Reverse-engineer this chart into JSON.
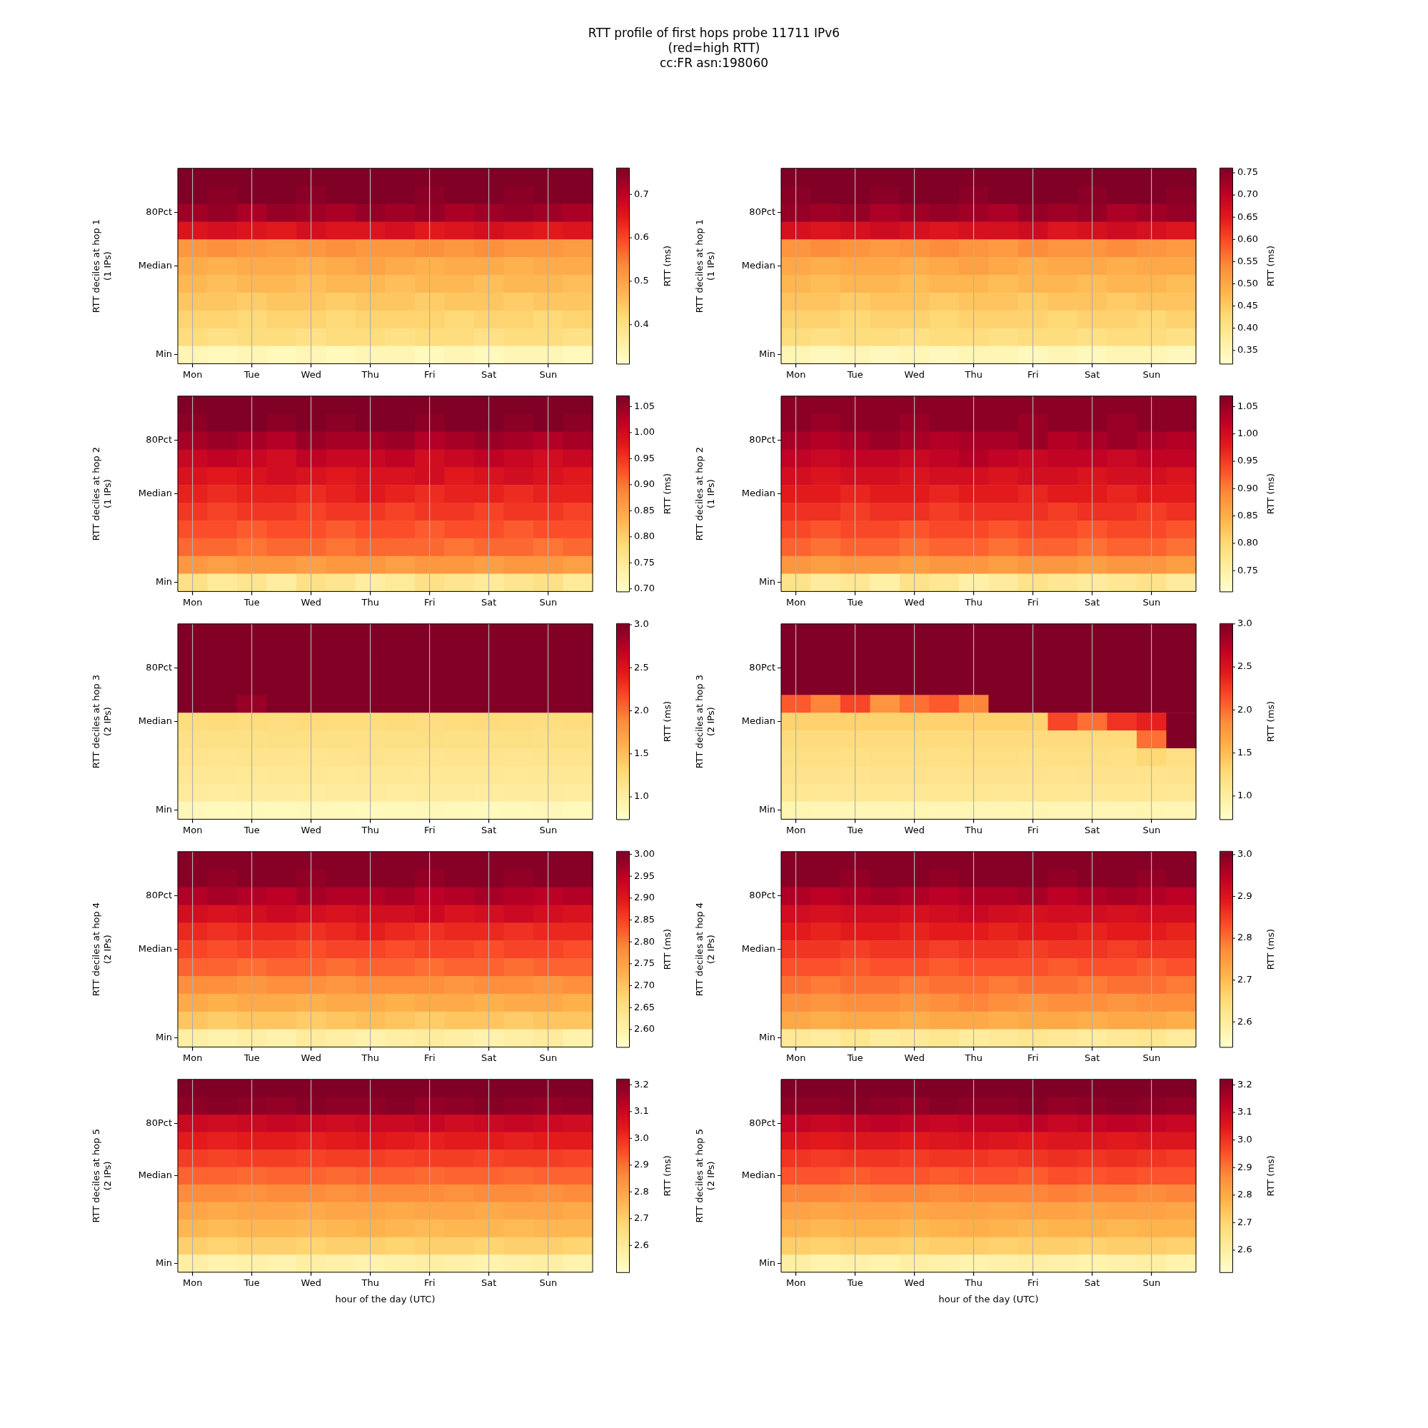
{
  "chart_data": [
    {
      "type": "heatmap",
      "title": "RTT profile of first hops probe 11711 IPv6\n(red=high RTT)\ncc:FR asn:198060",
      "ylabel": "RTT deciles at hop 1\n(1 IPs)",
      "clabel": "RTT (ms)",
      "grid": "x",
      "categories": [
        "Mon",
        null,
        "Tue",
        null,
        "Wed",
        null,
        "Thu",
        null,
        "Fri",
        null,
        "Sat",
        null,
        "Sun",
        null
      ],
      "y_categories": [
        null,
        null,
        "80Pct",
        null,
        null,
        "Median",
        null,
        null,
        null,
        null,
        "Min"
      ],
      "clim": [
        0.31,
        0.76
      ],
      "cticks": [
        0.4,
        0.5,
        0.6,
        0.7
      ],
      "cells": [
        [
          0.76,
          0.76,
          0.76,
          0.76,
          0.76,
          0.76,
          0.76,
          0.76,
          0.76,
          0.76,
          0.76,
          0.76,
          0.76,
          0.76
        ],
        [
          0.76,
          0.75,
          0.76,
          0.76,
          0.75,
          0.76,
          0.76,
          0.76,
          0.75,
          0.76,
          0.76,
          0.75,
          0.76,
          0.76
        ],
        [
          0.73,
          0.74,
          0.72,
          0.74,
          0.73,
          0.72,
          0.74,
          0.73,
          0.74,
          0.72,
          0.73,
          0.74,
          0.73,
          0.72
        ],
        [
          0.66,
          0.67,
          0.66,
          0.65,
          0.67,
          0.66,
          0.66,
          0.67,
          0.65,
          0.66,
          0.67,
          0.66,
          0.65,
          0.66
        ],
        [
          0.52,
          0.53,
          0.52,
          0.51,
          0.52,
          0.53,
          0.52,
          0.52,
          0.53,
          0.52,
          0.53,
          0.52,
          0.52,
          0.51
        ],
        [
          0.49,
          0.48,
          0.49,
          0.49,
          0.48,
          0.49,
          0.5,
          0.49,
          0.48,
          0.49,
          0.49,
          0.48,
          0.49,
          0.49
        ],
        [
          0.47,
          0.46,
          0.47,
          0.47,
          0.46,
          0.47,
          0.47,
          0.46,
          0.47,
          0.47,
          0.46,
          0.47,
          0.47,
          0.46
        ],
        [
          0.45,
          0.45,
          0.44,
          0.45,
          0.45,
          0.44,
          0.45,
          0.45,
          0.44,
          0.45,
          0.45,
          0.44,
          0.45,
          0.45
        ],
        [
          0.43,
          0.43,
          0.42,
          0.43,
          0.43,
          0.42,
          0.43,
          0.43,
          0.43,
          0.42,
          0.43,
          0.43,
          0.42,
          0.43
        ],
        [
          0.41,
          0.4,
          0.41,
          0.41,
          0.4,
          0.41,
          0.41,
          0.4,
          0.41,
          0.41,
          0.4,
          0.41,
          0.41,
          0.4
        ],
        [
          0.34,
          0.33,
          0.34,
          0.33,
          0.34,
          0.33,
          0.34,
          0.34,
          0.33,
          0.34,
          0.33,
          0.34,
          0.34,
          0.33
        ]
      ]
    },
    {
      "type": "heatmap",
      "ylabel": "RTT deciles at hop 1\n(1 IPs)",
      "clabel": "RTT (ms)",
      "grid": "x",
      "categories": [
        "Mon",
        null,
        "Tue",
        null,
        "Wed",
        null,
        "Thu",
        null,
        "Fri",
        null,
        "Sat",
        null,
        "Sun",
        null
      ],
      "y_categories": [
        null,
        null,
        "80Pct",
        null,
        null,
        "Median",
        null,
        null,
        null,
        null,
        "Min"
      ],
      "clim": [
        0.32,
        0.76
      ],
      "cticks": [
        0.35,
        {
          "value": 0.4,
          "label": "0.40"
        },
        0.45,
        {
          "value": 0.5,
          "label": "0.50"
        },
        0.55,
        {
          "value": 0.6,
          "label": "0.60"
        },
        0.65,
        {
          "value": 0.7,
          "label": "0.70"
        },
        0.75
      ],
      "cells": [
        [
          0.76,
          0.76,
          0.76,
          0.76,
          0.76,
          0.76,
          0.76,
          0.76,
          0.76,
          0.76,
          0.76,
          0.76,
          0.76,
          0.76
        ],
        [
          0.75,
          0.76,
          0.76,
          0.75,
          0.76,
          0.76,
          0.75,
          0.76,
          0.76,
          0.76,
          0.75,
          0.76,
          0.76,
          0.75
        ],
        [
          0.74,
          0.73,
          0.74,
          0.72,
          0.73,
          0.74,
          0.73,
          0.72,
          0.74,
          0.73,
          0.74,
          0.72,
          0.73,
          0.74
        ],
        [
          0.67,
          0.66,
          0.67,
          0.68,
          0.67,
          0.66,
          0.67,
          0.67,
          0.68,
          0.66,
          0.67,
          0.68,
          0.67,
          0.66
        ],
        [
          0.53,
          0.54,
          0.53,
          0.52,
          0.53,
          0.54,
          0.53,
          0.52,
          0.54,
          0.53,
          0.53,
          0.54,
          0.53,
          0.52
        ],
        [
          0.5,
          0.49,
          0.5,
          0.5,
          0.49,
          0.5,
          0.51,
          0.5,
          0.49,
          0.5,
          0.5,
          0.49,
          0.5,
          0.5
        ],
        [
          0.48,
          0.47,
          0.48,
          0.48,
          0.47,
          0.48,
          0.48,
          0.47,
          0.48,
          0.48,
          0.47,
          0.48,
          0.48,
          0.47
        ],
        [
          0.46,
          0.46,
          0.45,
          0.46,
          0.46,
          0.45,
          0.46,
          0.46,
          0.45,
          0.46,
          0.46,
          0.45,
          0.46,
          0.46
        ],
        [
          0.44,
          0.44,
          0.43,
          0.44,
          0.44,
          0.43,
          0.44,
          0.44,
          0.44,
          0.43,
          0.44,
          0.44,
          0.43,
          0.44
        ],
        [
          0.42,
          0.41,
          0.42,
          0.42,
          0.41,
          0.42,
          0.42,
          0.41,
          0.42,
          0.42,
          0.41,
          0.42,
          0.42,
          0.41
        ],
        [
          0.35,
          0.34,
          0.35,
          0.34,
          0.35,
          0.34,
          0.35,
          0.35,
          0.34,
          0.35,
          0.34,
          0.35,
          0.35,
          0.34
        ]
      ]
    },
    {
      "type": "heatmap",
      "ylabel": "RTT deciles at hop 2\n(1 IPs)",
      "clabel": "RTT (ms)",
      "grid": "x",
      "categories": [
        "Mon",
        null,
        "Tue",
        null,
        "Wed",
        null,
        "Thu",
        null,
        "Fri",
        null,
        "Sat",
        null,
        "Sun",
        null
      ],
      "y_categories": [
        null,
        null,
        "80Pct",
        null,
        null,
        "Median",
        null,
        null,
        null,
        null,
        "Min"
      ],
      "clim": [
        0.695,
        1.07
      ],
      "cticks": [
        {
          "value": 0.7,
          "label": "0.70"
        },
        0.75,
        {
          "value": 0.8,
          "label": "0.80"
        },
        0.85,
        {
          "value": 0.9,
          "label": "0.90"
        },
        0.95,
        {
          "value": 1,
          "label": "1.00"
        },
        1.05
      ],
      "cells": [
        [
          1.07,
          1.07,
          1.07,
          1.07,
          1.07,
          1.07,
          1.07,
          1.07,
          1.07,
          1.07,
          1.07,
          1.07,
          1.07,
          1.07
        ],
        [
          1.06,
          1.07,
          1.07,
          1.06,
          1.07,
          1.06,
          1.07,
          1.07,
          1.06,
          1.07,
          1.07,
          1.06,
          1.07,
          1.06
        ],
        [
          1.04,
          1.05,
          1.04,
          1.03,
          1.05,
          1.04,
          1.04,
          1.05,
          1.03,
          1.04,
          1.05,
          1.04,
          1.03,
          1.04
        ],
        [
          1.01,
          1.02,
          1.01,
          1.0,
          1.02,
          1.01,
          1.01,
          1.02,
          1.0,
          1.01,
          1.02,
          1.01,
          1.0,
          1.01
        ],
        [
          0.99,
          0.98,
          0.99,
          1.0,
          0.99,
          0.98,
          0.99,
          0.99,
          1.0,
          0.98,
          0.99,
          1.0,
          0.99,
          0.98
        ],
        [
          0.97,
          0.96,
          0.97,
          0.97,
          0.96,
          0.97,
          0.98,
          0.97,
          0.96,
          0.97,
          0.97,
          0.96,
          0.97,
          0.97
        ],
        [
          0.95,
          0.94,
          0.95,
          0.95,
          0.94,
          0.95,
          0.95,
          0.94,
          0.95,
          0.95,
          0.94,
          0.95,
          0.95,
          0.94
        ],
        [
          0.93,
          0.93,
          0.92,
          0.93,
          0.93,
          0.92,
          0.93,
          0.93,
          0.92,
          0.93,
          0.93,
          0.92,
          0.93,
          0.93
        ],
        [
          0.91,
          0.91,
          0.9,
          0.91,
          0.91,
          0.9,
          0.91,
          0.91,
          0.91,
          0.9,
          0.91,
          0.91,
          0.9,
          0.91
        ],
        [
          0.87,
          0.86,
          0.87,
          0.87,
          0.86,
          0.87,
          0.87,
          0.86,
          0.87,
          0.87,
          0.86,
          0.87,
          0.87,
          0.86
        ],
        [
          0.77,
          0.75,
          0.76,
          0.74,
          0.77,
          0.76,
          0.74,
          0.75,
          0.77,
          0.76,
          0.75,
          0.76,
          0.77,
          0.75
        ]
      ]
    },
    {
      "type": "heatmap",
      "ylabel": "RTT deciles at hop 2\n(1 IPs)",
      "clabel": "RTT (ms)",
      "grid": "x",
      "categories": [
        "Mon",
        null,
        "Tue",
        null,
        "Wed",
        null,
        "Thu",
        null,
        "Fri",
        null,
        "Sat",
        null,
        "Sun",
        null
      ],
      "y_categories": [
        null,
        null,
        "80Pct",
        null,
        null,
        "Median",
        null,
        null,
        null,
        null,
        "Min"
      ],
      "clim": [
        0.712,
        1.069
      ],
      "cticks": [
        0.75,
        {
          "value": 0.8,
          "label": "0.80"
        },
        0.85,
        {
          "value": 0.9,
          "label": "0.90"
        },
        0.95,
        {
          "value": 1,
          "label": "1.00"
        },
        1.05
      ],
      "cells": [
        [
          1.06,
          1.06,
          1.06,
          1.06,
          1.06,
          1.06,
          1.06,
          1.06,
          1.06,
          1.06,
          1.06,
          1.06,
          1.06,
          1.06
        ],
        [
          1.06,
          1.05,
          1.06,
          1.06,
          1.05,
          1.06,
          1.06,
          1.06,
          1.05,
          1.06,
          1.06,
          1.05,
          1.06,
          1.06
        ],
        [
          1.04,
          1.03,
          1.04,
          1.05,
          1.04,
          1.03,
          1.04,
          1.04,
          1.05,
          1.03,
          1.04,
          1.05,
          1.04,
          1.03
        ],
        [
          1.02,
          1.01,
          1.02,
          1.02,
          1.01,
          1.02,
          1.03,
          1.02,
          1.01,
          1.02,
          1.02,
          1.01,
          1.02,
          1.02
        ],
        [
          1.0,
          0.99,
          1.0,
          1.0,
          0.99,
          1.0,
          1.0,
          0.99,
          1.0,
          1.0,
          0.99,
          1.0,
          1.0,
          0.99
        ],
        [
          0.98,
          0.98,
          0.97,
          0.98,
          0.98,
          0.97,
          0.98,
          0.98,
          0.97,
          0.98,
          0.98,
          0.97,
          0.98,
          0.98
        ],
        [
          0.96,
          0.96,
          0.95,
          0.96,
          0.96,
          0.95,
          0.96,
          0.96,
          0.96,
          0.95,
          0.96,
          0.96,
          0.95,
          0.96
        ],
        [
          0.94,
          0.93,
          0.94,
          0.94,
          0.93,
          0.94,
          0.94,
          0.93,
          0.94,
          0.94,
          0.93,
          0.94,
          0.94,
          0.93
        ],
        [
          0.92,
          0.91,
          0.92,
          0.92,
          0.91,
          0.92,
          0.92,
          0.91,
          0.92,
          0.92,
          0.91,
          0.92,
          0.92,
          0.91
        ],
        [
          0.88,
          0.87,
          0.88,
          0.88,
          0.87,
          0.88,
          0.88,
          0.87,
          0.88,
          0.88,
          0.87,
          0.88,
          0.88,
          0.87
        ],
        [
          0.78,
          0.76,
          0.77,
          0.75,
          0.78,
          0.77,
          0.75,
          0.76,
          0.78,
          0.77,
          0.76,
          0.77,
          0.78,
          0.76
        ]
      ]
    },
    {
      "type": "heatmap",
      "ylabel": "RTT deciles at hop 3\n(2 IPs)",
      "clabel": "RTT (ms)",
      "grid": "x",
      "categories": [
        "Mon",
        null,
        "Tue",
        null,
        "Wed",
        null,
        "Thu",
        null,
        "Fri",
        null,
        "Sat",
        null,
        "Sun",
        null
      ],
      "y_categories": [
        null,
        null,
        "80Pct",
        null,
        null,
        "Median",
        null,
        null,
        null,
        null,
        "Min"
      ],
      "clim": [
        0.74,
        3.01
      ],
      "cticks": [
        {
          "value": 1,
          "label": "1.0"
        },
        1.5,
        {
          "value": 2,
          "label": "2.0"
        },
        2.5,
        {
          "value": 3,
          "label": "3.0"
        }
      ],
      "cells": [
        [
          3.0,
          3.0,
          3.0,
          3.0,
          3.0,
          3.0,
          3.0,
          3.0,
          3.0,
          3.0,
          3.0,
          3.0,
          3.0,
          3.0
        ],
        [
          3.0,
          3.0,
          3.0,
          3.0,
          3.0,
          3.0,
          3.0,
          3.0,
          3.0,
          3.0,
          3.0,
          3.0,
          3.0,
          3.0
        ],
        [
          3.0,
          3.0,
          3.0,
          3.0,
          3.0,
          3.0,
          3.0,
          3.0,
          3.0,
          3.0,
          3.0,
          3.0,
          3.0,
          3.0
        ],
        [
          3.0,
          3.0,
          3.0,
          3.0,
          3.0,
          3.0,
          3.0,
          3.0,
          3.0,
          3.0,
          3.0,
          3.0,
          3.0,
          3.0
        ],
        [
          3.0,
          3.0,
          2.9,
          3.0,
          3.0,
          3.0,
          3.0,
          3.0,
          3.0,
          3.0,
          3.0,
          3.0,
          3.0,
          3.0
        ],
        [
          1.25,
          1.27,
          1.25,
          1.24,
          1.26,
          1.25,
          1.25,
          1.27,
          1.24,
          1.25,
          1.26,
          1.25,
          1.24,
          1.25
        ],
        [
          1.2,
          1.19,
          1.2,
          1.21,
          1.2,
          1.19,
          1.2,
          1.2,
          1.21,
          1.19,
          1.2,
          1.21,
          1.2,
          1.19
        ],
        [
          1.15,
          1.14,
          1.15,
          1.15,
          1.14,
          1.15,
          1.16,
          1.15,
          1.14,
          1.15,
          1.15,
          1.14,
          1.15,
          1.15
        ],
        [
          1.1,
          1.1,
          1.09,
          1.1,
          1.1,
          1.09,
          1.1,
          1.1,
          1.09,
          1.1,
          1.1,
          1.09,
          1.1,
          1.1
        ],
        [
          1.05,
          1.04,
          1.05,
          1.05,
          1.04,
          1.05,
          1.05,
          1.04,
          1.05,
          1.05,
          1.04,
          1.05,
          1.05,
          1.04
        ],
        [
          0.86,
          0.84,
          0.85,
          0.84,
          0.86,
          0.85,
          0.84,
          0.85,
          0.86,
          0.85,
          0.84,
          0.85,
          0.86,
          0.84
        ]
      ]
    },
    {
      "type": "heatmap",
      "ylabel": "RTT deciles at hop 3\n(2 IPs)",
      "clabel": "RTT (ms)",
      "grid": "x",
      "categories": [
        "Mon",
        null,
        "Tue",
        null,
        "Wed",
        null,
        "Thu",
        null,
        "Fri",
        null,
        "Sat",
        null,
        "Sun",
        null
      ],
      "y_categories": [
        null,
        null,
        "80Pct",
        null,
        null,
        "Median",
        null,
        null,
        null,
        null,
        "Min"
      ],
      "clim": [
        0.73,
        3.0
      ],
      "cticks": [
        {
          "value": 1,
          "label": "1.0"
        },
        1.5,
        {
          "value": 2,
          "label": "2.0"
        },
        2.5,
        {
          "value": 3,
          "label": "3.0"
        }
      ],
      "cells": [
        [
          3.0,
          3.0,
          3.0,
          3.0,
          3.0,
          3.0,
          3.0,
          3.0,
          3.0,
          3.0,
          3.0,
          3.0,
          3.0,
          3.0
        ],
        [
          3.0,
          3.0,
          3.0,
          3.0,
          3.0,
          3.0,
          3.0,
          3.0,
          3.0,
          3.0,
          3.0,
          3.0,
          3.0,
          3.0
        ],
        [
          3.0,
          3.0,
          3.0,
          3.0,
          3.0,
          3.0,
          3.0,
          3.0,
          3.0,
          3.0,
          3.0,
          3.0,
          3.0,
          3.0
        ],
        [
          3.0,
          3.0,
          3.0,
          3.0,
          3.0,
          3.0,
          3.0,
          3.0,
          3.0,
          3.0,
          3.0,
          3.0,
          3.0,
          3.0
        ],
        [
          2.1,
          1.9,
          2.2,
          1.8,
          2.0,
          2.1,
          1.9,
          3.0,
          3.0,
          3.0,
          3.0,
          3.0,
          3.0,
          3.0
        ],
        [
          1.35,
          1.35,
          1.35,
          1.35,
          1.35,
          1.35,
          1.35,
          1.35,
          1.35,
          2.2,
          2.0,
          2.3,
          2.4,
          3.0
        ],
        [
          1.25,
          1.25,
          1.25,
          1.25,
          1.25,
          1.25,
          1.25,
          1.25,
          1.25,
          1.25,
          1.25,
          1.25,
          2.0,
          3.0
        ],
        [
          1.2,
          1.2,
          1.19,
          1.2,
          1.2,
          1.19,
          1.2,
          1.2,
          1.19,
          1.2,
          1.2,
          1.19,
          1.3,
          1.2
        ],
        [
          1.15,
          1.15,
          1.14,
          1.15,
          1.15,
          1.14,
          1.15,
          1.15,
          1.15,
          1.14,
          1.15,
          1.15,
          1.14,
          1.15
        ],
        [
          1.1,
          1.09,
          1.1,
          1.1,
          1.09,
          1.1,
          1.1,
          1.09,
          1.1,
          1.1,
          1.09,
          1.1,
          1.1,
          1.09
        ],
        [
          0.89,
          0.87,
          0.88,
          0.87,
          0.89,
          0.88,
          0.87,
          0.88,
          0.89,
          0.88,
          0.87,
          0.88,
          0.89,
          0.87
        ]
      ]
    },
    {
      "type": "heatmap",
      "ylabel": "RTT deciles at hop 4\n(2 IPs)",
      "clabel": "RTT (ms)",
      "grid": "x",
      "categories": [
        "Mon",
        null,
        "Tue",
        null,
        "Wed",
        null,
        "Thu",
        null,
        "Fri",
        null,
        "Sat",
        null,
        "Sun",
        null
      ],
      "y_categories": [
        null,
        null,
        "80Pct",
        null,
        null,
        "Median",
        null,
        null,
        null,
        null,
        "Min"
      ],
      "clim": [
        2.56,
        3.006
      ],
      "cticks": [
        {
          "value": 2.6,
          "label": "2.60"
        },
        2.65,
        {
          "value": 2.7,
          "label": "2.70"
        },
        2.75,
        {
          "value": 2.8,
          "label": "2.80"
        },
        2.85,
        {
          "value": 2.9,
          "label": "2.90"
        },
        2.95,
        {
          "value": 3,
          "label": "3.00"
        }
      ],
      "cells": [
        [
          3.0,
          3.0,
          3.0,
          3.0,
          3.0,
          3.0,
          3.0,
          3.0,
          3.0,
          3.0,
          3.0,
          3.0,
          3.0,
          3.0
        ],
        [
          3.0,
          2.99,
          3.0,
          3.0,
          2.99,
          3.0,
          3.0,
          3.0,
          2.99,
          3.0,
          3.0,
          2.99,
          3.0,
          3.0
        ],
        [
          2.96,
          2.97,
          2.96,
          2.95,
          2.97,
          2.96,
          2.96,
          2.97,
          2.95,
          2.96,
          2.97,
          2.96,
          2.95,
          2.96
        ],
        [
          2.92,
          2.91,
          2.92,
          2.93,
          2.92,
          2.91,
          2.92,
          2.92,
          2.93,
          2.91,
          2.92,
          2.93,
          2.92,
          2.91
        ],
        [
          2.88,
          2.87,
          2.88,
          2.88,
          2.87,
          2.88,
          2.89,
          2.88,
          2.87,
          2.88,
          2.88,
          2.87,
          2.88,
          2.88
        ],
        [
          2.85,
          2.84,
          2.85,
          2.85,
          2.84,
          2.85,
          2.85,
          2.84,
          2.85,
          2.85,
          2.84,
          2.85,
          2.85,
          2.84
        ],
        [
          2.82,
          2.82,
          2.81,
          2.82,
          2.82,
          2.81,
          2.82,
          2.82,
          2.81,
          2.82,
          2.82,
          2.81,
          2.82,
          2.82
        ],
        [
          2.78,
          2.78,
          2.77,
          2.78,
          2.78,
          2.77,
          2.78,
          2.78,
          2.78,
          2.77,
          2.78,
          2.78,
          2.77,
          2.78
        ],
        [
          2.74,
          2.73,
          2.74,
          2.74,
          2.73,
          2.74,
          2.74,
          2.73,
          2.74,
          2.74,
          2.73,
          2.74,
          2.74,
          2.73
        ],
        [
          2.7,
          2.69,
          2.7,
          2.7,
          2.69,
          2.7,
          2.71,
          2.7,
          2.69,
          2.7,
          2.7,
          2.69,
          2.7,
          2.7
        ],
        [
          2.61,
          2.6,
          2.61,
          2.6,
          2.62,
          2.61,
          2.6,
          2.61,
          2.62,
          2.61,
          2.6,
          2.61,
          2.62,
          2.6
        ]
      ]
    },
    {
      "type": "heatmap",
      "ylabel": "RTT deciles at hop 4\n(2 IPs)",
      "clabel": "RTT (ms)",
      "grid": "x",
      "categories": [
        "Mon",
        null,
        "Tue",
        null,
        "Wed",
        null,
        "Thu",
        null,
        "Fri",
        null,
        "Sat",
        null,
        "Sun",
        null
      ],
      "y_categories": [
        null,
        null,
        "80Pct",
        null,
        null,
        "Median",
        null,
        null,
        null,
        null,
        "Min"
      ],
      "clim": [
        2.54,
        3.007
      ],
      "cticks": [
        2.6,
        2.7,
        2.8,
        2.9,
        {
          "value": 3,
          "label": "3.0"
        }
      ],
      "cells": [
        [
          3.0,
          3.0,
          3.0,
          3.0,
          3.0,
          3.0,
          3.0,
          3.0,
          3.0,
          3.0,
          3.0,
          3.0,
          3.0,
          3.0
        ],
        [
          3.0,
          3.0,
          2.99,
          3.0,
          3.0,
          2.99,
          3.0,
          3.0,
          3.0,
          2.99,
          3.0,
          3.0,
          2.99,
          3.0
        ],
        [
          2.96,
          2.95,
          2.96,
          2.97,
          2.96,
          2.95,
          2.96,
          2.96,
          2.97,
          2.95,
          2.96,
          2.97,
          2.96,
          2.95
        ],
        [
          2.92,
          2.91,
          2.92,
          2.92,
          2.91,
          2.92,
          2.93,
          2.92,
          2.91,
          2.92,
          2.92,
          2.91,
          2.92,
          2.92
        ],
        [
          2.89,
          2.88,
          2.89,
          2.89,
          2.88,
          2.89,
          2.89,
          2.88,
          2.89,
          2.89,
          2.88,
          2.89,
          2.89,
          2.88
        ],
        [
          2.86,
          2.86,
          2.85,
          2.86,
          2.86,
          2.85,
          2.86,
          2.86,
          2.85,
          2.86,
          2.86,
          2.85,
          2.86,
          2.86
        ],
        [
          2.83,
          2.83,
          2.82,
          2.83,
          2.83,
          2.82,
          2.83,
          2.83,
          2.83,
          2.82,
          2.83,
          2.83,
          2.82,
          2.83
        ],
        [
          2.8,
          2.79,
          2.8,
          2.8,
          2.79,
          2.8,
          2.8,
          2.79,
          2.8,
          2.8,
          2.79,
          2.8,
          2.8,
          2.79
        ],
        [
          2.77,
          2.76,
          2.77,
          2.77,
          2.76,
          2.77,
          2.78,
          2.77,
          2.76,
          2.77,
          2.77,
          2.76,
          2.77,
          2.77
        ],
        [
          2.73,
          2.72,
          2.73,
          2.73,
          2.72,
          2.73,
          2.73,
          2.72,
          2.73,
          2.73,
          2.72,
          2.73,
          2.73,
          2.72
        ],
        [
          2.61,
          2.6,
          2.62,
          2.6,
          2.61,
          2.62,
          2.6,
          2.61,
          2.62,
          2.61,
          2.6,
          2.61,
          2.62,
          2.6
        ]
      ]
    },
    {
      "type": "heatmap",
      "ylabel": "RTT deciles at hop 5\n(2 IPs)",
      "xlabel": "hour of the day (UTC)",
      "clabel": "RTT (ms)",
      "grid": "x",
      "categories": [
        "Mon",
        null,
        "Tue",
        null,
        "Wed",
        null,
        "Thu",
        null,
        "Fri",
        null,
        "Sat",
        null,
        "Sun",
        null
      ],
      "y_categories": [
        null,
        null,
        "80Pct",
        null,
        null,
        "Median",
        null,
        null,
        null,
        null,
        "Min"
      ],
      "clim": [
        2.5,
        3.22
      ],
      "cticks": [
        2.6,
        2.7,
        2.8,
        2.9,
        {
          "value": 3,
          "label": "3.0"
        },
        3.1,
        3.2
      ],
      "cells": [
        [
          3.22,
          3.22,
          3.22,
          3.22,
          3.22,
          3.22,
          3.22,
          3.22,
          3.22,
          3.22,
          3.22,
          3.22,
          3.22,
          3.22
        ],
        [
          3.2,
          3.21,
          3.2,
          3.19,
          3.21,
          3.2,
          3.2,
          3.21,
          3.19,
          3.2,
          3.21,
          3.2,
          3.19,
          3.2
        ],
        [
          3.1,
          3.09,
          3.1,
          3.11,
          3.1,
          3.09,
          3.1,
          3.1,
          3.11,
          3.09,
          3.1,
          3.11,
          3.1,
          3.09
        ],
        [
          3.04,
          3.03,
          3.04,
          3.04,
          3.03,
          3.04,
          3.05,
          3.04,
          3.03,
          3.04,
          3.04,
          3.03,
          3.04,
          3.04
        ],
        [
          2.98,
          2.97,
          2.98,
          2.98,
          2.97,
          2.98,
          2.98,
          2.97,
          2.98,
          2.98,
          2.97,
          2.98,
          2.98,
          2.97
        ],
        [
          2.92,
          2.92,
          2.91,
          2.92,
          2.92,
          2.91,
          2.92,
          2.92,
          2.91,
          2.92,
          2.92,
          2.91,
          2.92,
          2.92
        ],
        [
          2.86,
          2.86,
          2.85,
          2.86,
          2.86,
          2.85,
          2.86,
          2.86,
          2.86,
          2.85,
          2.86,
          2.86,
          2.85,
          2.86
        ],
        [
          2.8,
          2.79,
          2.8,
          2.8,
          2.79,
          2.8,
          2.8,
          2.79,
          2.8,
          2.8,
          2.79,
          2.8,
          2.8,
          2.79
        ],
        [
          2.76,
          2.75,
          2.76,
          2.76,
          2.75,
          2.76,
          2.77,
          2.76,
          2.75,
          2.76,
          2.76,
          2.75,
          2.76,
          2.76
        ],
        [
          2.7,
          2.69,
          2.7,
          2.7,
          2.69,
          2.7,
          2.7,
          2.69,
          2.7,
          2.7,
          2.69,
          2.7,
          2.7,
          2.69
        ],
        [
          2.58,
          2.56,
          2.57,
          2.56,
          2.58,
          2.57,
          2.56,
          2.57,
          2.58,
          2.57,
          2.56,
          2.57,
          2.58,
          2.56
        ]
      ]
    },
    {
      "type": "heatmap",
      "ylabel": "RTT deciles at hop 5\n(2 IPs)",
      "xlabel": "hour of the day (UTC)",
      "clabel": "RTT (ms)",
      "grid": "x",
      "categories": [
        "Mon",
        null,
        "Tue",
        null,
        "Wed",
        null,
        "Thu",
        null,
        "Fri",
        null,
        "Sat",
        null,
        "Sun",
        null
      ],
      "y_categories": [
        null,
        null,
        "80Pct",
        null,
        null,
        "Median",
        null,
        null,
        null,
        null,
        "Min"
      ],
      "clim": [
        2.52,
        3.22
      ],
      "cticks": [
        2.6,
        2.7,
        2.8,
        2.9,
        {
          "value": 3,
          "label": "3.0"
        },
        3.1,
        3.2
      ],
      "cells": [
        [
          3.22,
          3.22,
          3.22,
          3.22,
          3.22,
          3.22,
          3.22,
          3.22,
          3.22,
          3.22,
          3.22,
          3.22,
          3.22,
          3.22
        ],
        [
          3.2,
          3.2,
          3.21,
          3.2,
          3.19,
          3.21,
          3.2,
          3.2,
          3.21,
          3.19,
          3.2,
          3.21,
          3.2,
          3.19
        ],
        [
          3.12,
          3.11,
          3.12,
          3.13,
          3.12,
          3.11,
          3.12,
          3.12,
          3.13,
          3.11,
          3.12,
          3.13,
          3.12,
          3.11
        ],
        [
          3.06,
          3.05,
          3.06,
          3.06,
          3.05,
          3.06,
          3.07,
          3.06,
          3.05,
          3.06,
          3.06,
          3.05,
          3.06,
          3.06
        ],
        [
          3.0,
          2.99,
          3.0,
          3.0,
          2.99,
          3.0,
          3.0,
          2.99,
          3.0,
          3.01,
          3.0,
          3.01,
          3.0,
          2.99
        ],
        [
          2.95,
          2.95,
          2.94,
          2.95,
          2.95,
          2.94,
          2.95,
          2.95,
          2.94,
          2.96,
          2.95,
          2.96,
          2.95,
          2.95
        ],
        [
          2.88,
          2.88,
          2.87,
          2.88,
          2.88,
          2.87,
          2.88,
          2.88,
          2.88,
          2.89,
          2.88,
          2.88,
          2.87,
          2.88
        ],
        [
          2.82,
          2.81,
          2.82,
          2.82,
          2.81,
          2.82,
          2.82,
          2.81,
          2.82,
          2.82,
          2.81,
          2.82,
          2.82,
          2.81
        ],
        [
          2.78,
          2.77,
          2.78,
          2.78,
          2.77,
          2.78,
          2.79,
          2.78,
          2.77,
          2.78,
          2.78,
          2.77,
          2.78,
          2.78
        ],
        [
          2.72,
          2.71,
          2.72,
          2.72,
          2.71,
          2.72,
          2.72,
          2.71,
          2.72,
          2.72,
          2.71,
          2.72,
          2.72,
          2.71
        ],
        [
          2.6,
          2.58,
          2.59,
          2.58,
          2.6,
          2.59,
          2.58,
          2.59,
          2.6,
          2.59,
          2.58,
          2.59,
          2.6,
          2.58
        ]
      ]
    }
  ]
}
